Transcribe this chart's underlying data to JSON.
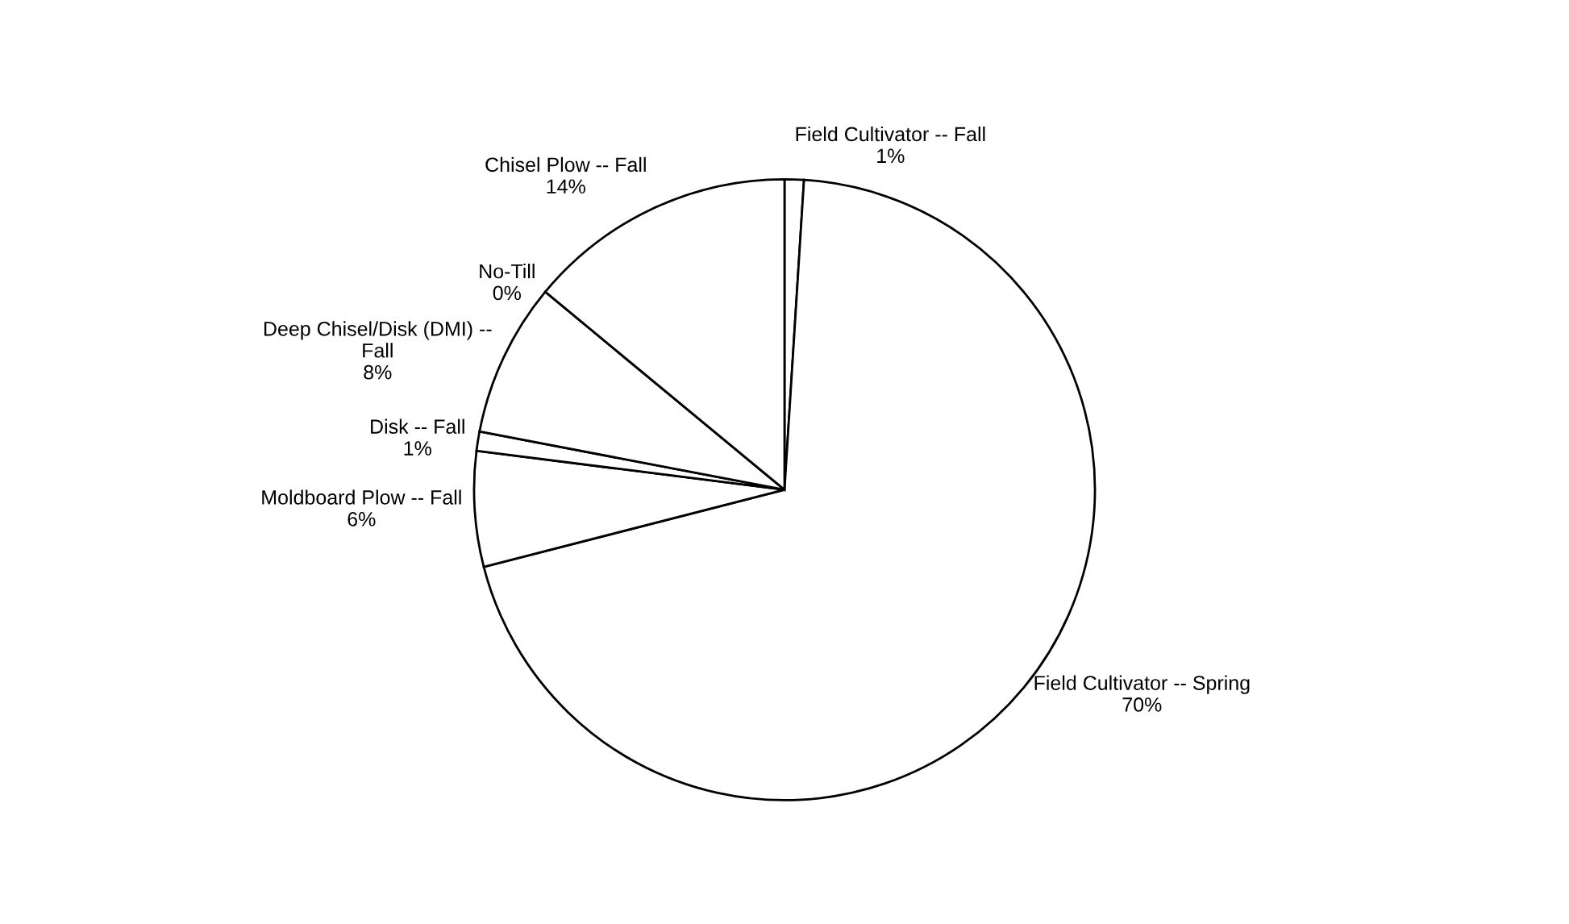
{
  "chart_data": {
    "type": "pie",
    "categories": [
      "Field Cultivator -- Fall",
      "Field Cultivator -- Spring",
      "Moldboard Plow -- Fall",
      "Disk -- Fall",
      "Deep Chisel/Disk (DMI) --\nFall",
      "No-Till",
      "Chisel Plow -- Fall"
    ],
    "values": [
      1,
      70,
      6,
      1,
      8,
      0,
      14
    ],
    "value_labels": [
      "1%",
      "70%",
      "6%",
      "1%",
      "8%",
      "0%",
      "14%"
    ],
    "colors": [
      "#ffffff",
      "#ffffff",
      "#ffffff",
      "#ffffff",
      "#ffffff",
      "#ffffff",
      "#ffffff"
    ]
  }
}
